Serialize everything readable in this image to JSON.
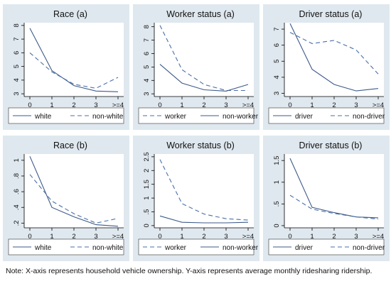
{
  "figure": {
    "note": "Note: X-axis represents household vehicle ownership. Y-axis represents average monthly ridesharing ridership.",
    "colors": {
      "outer_bg": "#dfe8ef",
      "plot_bg": "#ffffff",
      "solid_line": "#3d5a8a",
      "dashed_line": "#4a6fa8",
      "axis": "#000000"
    }
  },
  "chart_data": [
    {
      "type": "line",
      "title": "Race (a)",
      "categories": [
        "0",
        "1",
        "2",
        "3",
        ">=4"
      ],
      "ylim": [
        2.8,
        8.2
      ],
      "yticks": [
        3,
        4,
        5,
        6,
        7,
        8
      ],
      "ytick_labels": [
        "3",
        "4",
        "5",
        "6",
        "7",
        "8"
      ],
      "series": [
        {
          "name": "white",
          "style": "solid",
          "values": [
            7.8,
            4.7,
            3.6,
            3.2,
            3.15
          ]
        },
        {
          "name": "non-white",
          "style": "dashed",
          "values": [
            6.0,
            4.6,
            3.7,
            3.4,
            4.2
          ]
        }
      ]
    },
    {
      "type": "line",
      "title": "Worker status (a)",
      "categories": [
        "0",
        "1",
        "2",
        "3",
        ">=4"
      ],
      "ylim": [
        2.8,
        8.3
      ],
      "yticks": [
        3,
        4,
        5,
        6,
        7,
        8
      ],
      "ytick_labels": [
        "3",
        "4",
        "5",
        "6",
        "7",
        "8"
      ],
      "series": [
        {
          "name": "worker",
          "style": "dashed",
          "values": [
            8.1,
            4.8,
            3.7,
            3.25,
            3.25
          ]
        },
        {
          "name": "non-worker",
          "style": "solid",
          "values": [
            5.2,
            3.8,
            3.3,
            3.2,
            3.7
          ]
        }
      ]
    },
    {
      "type": "line",
      "title": "Driver status (a)",
      "categories": [
        "0",
        "1",
        "2",
        "3",
        ">=4"
      ],
      "ylim": [
        2.8,
        7.4
      ],
      "yticks": [
        3,
        4,
        5,
        6,
        7
      ],
      "ytick_labels": [
        "3",
        "4",
        "5",
        "6",
        "7"
      ],
      "series": [
        {
          "name": "driver",
          "style": "solid",
          "values": [
            7.35,
            4.5,
            3.55,
            3.15,
            3.3
          ]
        },
        {
          "name": "non-driver",
          "style": "dashed",
          "values": [
            6.8,
            6.1,
            6.3,
            5.7,
            4.2
          ]
        }
      ]
    },
    {
      "type": "line",
      "title": "Race (b)",
      "categories": [
        "0",
        "1",
        "2",
        "3",
        ">=4"
      ],
      "ylim": [
        0.14,
        1.08
      ],
      "yticks": [
        0.2,
        0.4,
        0.6,
        0.8,
        1
      ],
      "ytick_labels": [
        ".2",
        ".4",
        ".6",
        ".8",
        "1"
      ],
      "series": [
        {
          "name": "white",
          "style": "solid",
          "values": [
            1.05,
            0.4,
            0.28,
            0.18,
            0.16
          ]
        },
        {
          "name": "non-white",
          "style": "dashed",
          "values": [
            0.82,
            0.48,
            0.32,
            0.2,
            0.26
          ]
        }
      ]
    },
    {
      "type": "line",
      "title": "Worker status (b)",
      "categories": [
        "0",
        "1",
        "2",
        "3",
        ">=4"
      ],
      "ylim": [
        -0.08,
        2.6
      ],
      "yticks": [
        0,
        0.5,
        1,
        1.5,
        2,
        2.5
      ],
      "ytick_labels": [
        "0",
        ".5",
        "1",
        "1.5",
        "2",
        "2.5"
      ],
      "series": [
        {
          "name": "worker",
          "style": "dashed",
          "values": [
            2.4,
            0.8,
            0.42,
            0.25,
            0.2
          ]
        },
        {
          "name": "non-worker",
          "style": "solid",
          "values": [
            0.35,
            0.12,
            0.1,
            0.1,
            0.12
          ]
        }
      ]
    },
    {
      "type": "line",
      "title": "Driver status (b)",
      "categories": [
        "0",
        "1",
        "2",
        "3",
        ">=4"
      ],
      "ylim": [
        -0.05,
        1.65
      ],
      "yticks": [
        0,
        0.5,
        1,
        1.5
      ],
      "ytick_labels": [
        "0",
        ".5",
        "1",
        "1.5"
      ],
      "series": [
        {
          "name": "driver",
          "style": "solid",
          "values": [
            1.55,
            0.42,
            0.3,
            0.2,
            0.18
          ]
        },
        {
          "name": "non-driver",
          "style": "dashed",
          "values": [
            0.7,
            0.38,
            0.28,
            0.2,
            0.15
          ]
        }
      ]
    }
  ]
}
